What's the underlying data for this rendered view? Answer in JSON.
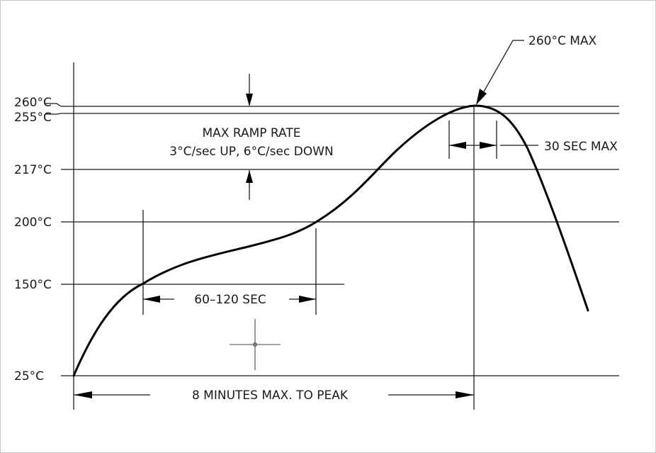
{
  "temp_labels": {
    "t260": "260°C",
    "t255": "255°C",
    "t217": "217°C",
    "t200": "200°C",
    "t150": "150°C",
    "t25": "25°C"
  },
  "annotations": {
    "peak": "260°C MAX",
    "ramp_title": "MAX RAMP RATE",
    "ramp_detail": "3°C/sec UP, 6°C/sec DOWN",
    "dwell": "30 SEC MAX",
    "soak": "60–120 SEC",
    "total": "8 MINUTES MAX. TO PEAK"
  }
}
